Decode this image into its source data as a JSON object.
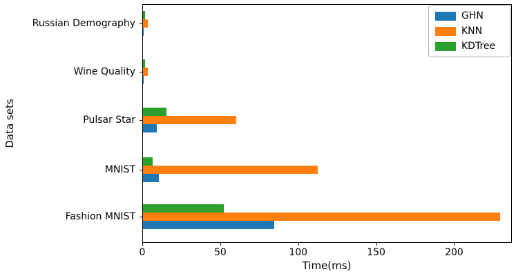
{
  "chart_data": {
    "type": "bar",
    "orientation": "horizontal",
    "title": "",
    "xlabel": "Time(ms)",
    "ylabel": "Data sets",
    "categories": [
      "Russian Demography",
      "Wine Quality",
      "Pulsar Star",
      "MNIST",
      "Fashion MNIST"
    ],
    "series": [
      {
        "name": "GHN",
        "color": "#1f77b4",
        "values": [
          0.2,
          0.2,
          9,
          10,
          84
        ]
      },
      {
        "name": "KNN",
        "color": "#ff7f0e",
        "values": [
          3.3,
          3.0,
          60,
          112,
          229
        ]
      },
      {
        "name": "KDTree",
        "color": "#2ca02c",
        "values": [
          1.5,
          1.3,
          15,
          6,
          52
        ]
      }
    ],
    "xlim": [
      0,
      237
    ],
    "xticks": [
      0,
      50,
      100,
      150,
      200
    ],
    "grid": false,
    "legend": {
      "position": "upper right",
      "entries": [
        "GHN",
        "KNN",
        "KDTree"
      ]
    }
  }
}
